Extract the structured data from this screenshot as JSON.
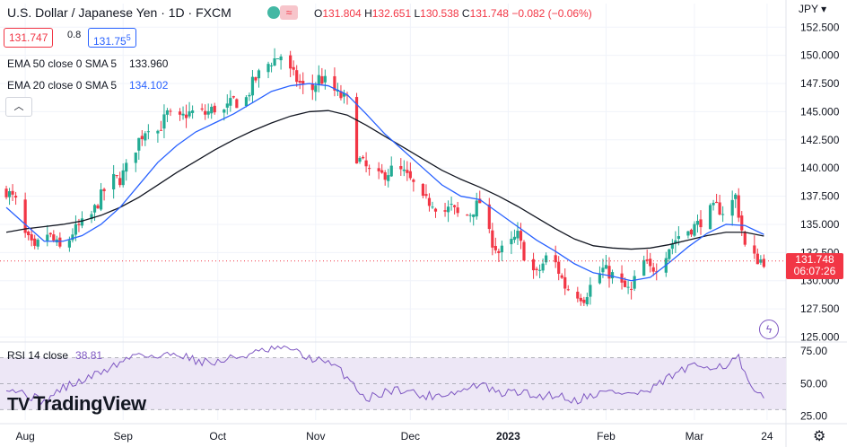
{
  "header": {
    "title": "U.S. Dollar / Japanese Yen · 1D · FXCM",
    "ohlc": {
      "o_label": "O",
      "o": "131.804",
      "h_label": "H",
      "h": "132.651",
      "l_label": "L",
      "l": "130.538",
      "c_label": "C",
      "c": "131.748",
      "change": "−0.082 (−0.06%)"
    },
    "bid": "131.747",
    "spread": "0.8",
    "ask": "131.75",
    "ask_sup": "5",
    "market_status_icon": "market-open-dot-icon",
    "pill_icon": "wave-icon"
  },
  "indicators": [
    {
      "label": "EMA 50 close 0 SMA 5",
      "value": "133.960",
      "color": "#131722"
    },
    {
      "label": "EMA 20 close 0 SMA 5",
      "value": "134.102",
      "color": "#2962ff"
    }
  ],
  "rsi": {
    "label": "RSI 14 close",
    "value": "38.81",
    "color": "#7e57c2"
  },
  "branding": {
    "logo_text": "TradingView",
    "logo_mark": "TV"
  },
  "price_axis": {
    "unit": "JPY"
  },
  "last_price": {
    "value": "131.748",
    "countdown": "06:07:26"
  },
  "colors": {
    "up": "#22ab94",
    "down": "#f23645",
    "ema20": "#2962ff",
    "ema50": "#131722",
    "rsi": "#7e57c2",
    "rsi_band": "#ede7f6"
  },
  "chart_data": {
    "type": "candlestick",
    "y_ticks": [
      125.0,
      127.5,
      130.0,
      132.5,
      135.0,
      137.5,
      140.0,
      142.5,
      145.0,
      147.5,
      150.0,
      152.5
    ],
    "y_tick_labels": [
      "125.000",
      "127.500",
      "130.000",
      "132.500",
      "135.000",
      "137.500",
      "140.000",
      "142.500",
      "145.000",
      "147.500",
      "150.000",
      "152.500"
    ],
    "ylim": [
      124.8,
      153.0
    ],
    "x_tick_labels": [
      "Aug",
      "Sep",
      "Oct",
      "Nov",
      "Dec",
      "2023",
      "Feb",
      "Mar",
      "24"
    ],
    "x_tick_days": [
      0,
      31,
      61,
      92,
      122,
      153,
      184,
      212,
      235
    ],
    "xlim": [
      -8,
      241
    ],
    "series": [
      {
        "name": "USD/JPY close",
        "close_points": [
          [
            -6,
            138.0
          ],
          [
            -3,
            137.0
          ],
          [
            0,
            134.0
          ],
          [
            3,
            132.6
          ],
          [
            6,
            134.5
          ],
          [
            9,
            133.5
          ],
          [
            12,
            132.5
          ],
          [
            15,
            134.3
          ],
          [
            18,
            135.0
          ],
          [
            21,
            135.8
          ],
          [
            24,
            137.5
          ],
          [
            27,
            139.0
          ],
          [
            30,
            139.0
          ],
          [
            33,
            140.5
          ],
          [
            36,
            142.5
          ],
          [
            39,
            143.8
          ],
          [
            42,
            143.3
          ],
          [
            45,
            144.8
          ],
          [
            48,
            144.0
          ],
          [
            51,
            144.8
          ],
          [
            54,
            145.0
          ],
          [
            57,
            144.8
          ],
          [
            60,
            145.3
          ],
          [
            63,
            145.0
          ],
          [
            66,
            146.0
          ],
          [
            69,
            145.5
          ],
          [
            72,
            147.5
          ],
          [
            75,
            148.7
          ],
          [
            78,
            149.5
          ],
          [
            81,
            150.0
          ],
          [
            84,
            148.5
          ],
          [
            87,
            147.5
          ],
          [
            90,
            146.5
          ],
          [
            93,
            148.0
          ],
          [
            96,
            147.5
          ],
          [
            99,
            146.5
          ],
          [
            102,
            146.0
          ],
          [
            105,
            141.0
          ],
          [
            108,
            140.0
          ],
          [
            111,
            139.0
          ],
          [
            114,
            139.5
          ],
          [
            117,
            140.0
          ],
          [
            120,
            139.5
          ],
          [
            123,
            138.5
          ],
          [
            126,
            137.0
          ],
          [
            129,
            137.0
          ],
          [
            132,
            136.0
          ],
          [
            135,
            136.5
          ],
          [
            138,
            135.5
          ],
          [
            141,
            136.0
          ],
          [
            144,
            137.0
          ],
          [
            147,
            134.0
          ],
          [
            150,
            132.5
          ],
          [
            153,
            133.0
          ],
          [
            156,
            134.0
          ],
          [
            159,
            131.5
          ],
          [
            162,
            130.5
          ],
          [
            165,
            132.0
          ],
          [
            168,
            131.5
          ],
          [
            171,
            129.5
          ],
          [
            174,
            129.0
          ],
          [
            177,
            128.5
          ],
          [
            180,
            130.0
          ],
          [
            183,
            131.0
          ],
          [
            186,
            130.5
          ],
          [
            189,
            129.5
          ],
          [
            192,
            129.0
          ],
          [
            195,
            132.0
          ],
          [
            198,
            131.0
          ],
          [
            201,
            131.5
          ],
          [
            204,
            133.0
          ],
          [
            207,
            134.0
          ],
          [
            210,
            134.5
          ],
          [
            213,
            135.0
          ],
          [
            216,
            136.0
          ],
          [
            219,
            136.5
          ],
          [
            222,
            136.0
          ],
          [
            225,
            137.5
          ],
          [
            228,
            133.0
          ],
          [
            231,
            132.0
          ],
          [
            234,
            131.748
          ]
        ]
      },
      {
        "name": "EMA 20",
        "points": [
          [
            -6,
            136.5
          ],
          [
            0,
            135.0
          ],
          [
            6,
            133.5
          ],
          [
            12,
            133.5
          ],
          [
            18,
            134.0
          ],
          [
            24,
            135.0
          ],
          [
            30,
            136.5
          ],
          [
            36,
            138.5
          ],
          [
            42,
            140.5
          ],
          [
            48,
            142.0
          ],
          [
            54,
            143.2
          ],
          [
            60,
            144.0
          ],
          [
            66,
            144.8
          ],
          [
            72,
            145.8
          ],
          [
            78,
            146.8
          ],
          [
            84,
            147.3
          ],
          [
            90,
            147.5
          ],
          [
            96,
            147.3
          ],
          [
            102,
            146.5
          ],
          [
            108,
            144.8
          ],
          [
            114,
            143.0
          ],
          [
            120,
            141.5
          ],
          [
            126,
            140.0
          ],
          [
            132,
            138.5
          ],
          [
            138,
            137.5
          ],
          [
            144,
            137.2
          ],
          [
            150,
            136.0
          ],
          [
            156,
            134.8
          ],
          [
            162,
            133.6
          ],
          [
            168,
            132.6
          ],
          [
            174,
            131.5
          ],
          [
            180,
            130.7
          ],
          [
            186,
            130.4
          ],
          [
            192,
            130.0
          ],
          [
            198,
            130.3
          ],
          [
            204,
            131.6
          ],
          [
            210,
            133.0
          ],
          [
            216,
            134.2
          ],
          [
            222,
            135.0
          ],
          [
            228,
            134.9
          ],
          [
            234,
            134.1
          ]
        ]
      },
      {
        "name": "EMA 50",
        "points": [
          [
            -6,
            134.3
          ],
          [
            0,
            134.6
          ],
          [
            6,
            134.8
          ],
          [
            12,
            135.0
          ],
          [
            18,
            135.3
          ],
          [
            24,
            135.8
          ],
          [
            30,
            136.5
          ],
          [
            36,
            137.4
          ],
          [
            42,
            138.5
          ],
          [
            48,
            139.6
          ],
          [
            54,
            140.6
          ],
          [
            60,
            141.6
          ],
          [
            66,
            142.5
          ],
          [
            72,
            143.3
          ],
          [
            78,
            144.0
          ],
          [
            84,
            144.6
          ],
          [
            90,
            145.0
          ],
          [
            96,
            145.1
          ],
          [
            102,
            144.7
          ],
          [
            108,
            143.8
          ],
          [
            114,
            142.8
          ],
          [
            120,
            141.8
          ],
          [
            126,
            140.8
          ],
          [
            132,
            139.8
          ],
          [
            138,
            139.0
          ],
          [
            144,
            138.3
          ],
          [
            150,
            137.5
          ],
          [
            156,
            136.6
          ],
          [
            162,
            135.6
          ],
          [
            168,
            134.6
          ],
          [
            174,
            133.7
          ],
          [
            180,
            133.1
          ],
          [
            186,
            132.9
          ],
          [
            192,
            132.8
          ],
          [
            198,
            132.9
          ],
          [
            204,
            133.2
          ],
          [
            210,
            133.6
          ],
          [
            216,
            134.0
          ],
          [
            222,
            134.3
          ],
          [
            228,
            134.3
          ],
          [
            234,
            133.96
          ]
        ]
      },
      {
        "name": "RSI 14",
        "points": [
          [
            -6,
            48
          ],
          [
            0,
            42
          ],
          [
            6,
            36
          ],
          [
            12,
            47
          ],
          [
            18,
            52
          ],
          [
            24,
            59
          ],
          [
            30,
            66
          ],
          [
            36,
            74
          ],
          [
            42,
            70
          ],
          [
            48,
            74
          ],
          [
            54,
            68
          ],
          [
            60,
            66
          ],
          [
            66,
            70
          ],
          [
            72,
            73
          ],
          [
            78,
            76
          ],
          [
            84,
            78
          ],
          [
            87,
            72
          ],
          [
            93,
            68
          ],
          [
            99,
            62
          ],
          [
            104,
            50
          ],
          [
            108,
            38
          ],
          [
            114,
            44
          ],
          [
            120,
            46
          ],
          [
            126,
            40
          ],
          [
            132,
            42
          ],
          [
            138,
            44
          ],
          [
            144,
            50
          ],
          [
            150,
            42
          ],
          [
            156,
            44
          ],
          [
            162,
            40
          ],
          [
            168,
            42
          ],
          [
            174,
            37
          ],
          [
            180,
            42
          ],
          [
            186,
            44
          ],
          [
            192,
            42
          ],
          [
            198,
            44
          ],
          [
            204,
            55
          ],
          [
            210,
            62
          ],
          [
            216,
            64
          ],
          [
            222,
            64
          ],
          [
            226,
            70
          ],
          [
            228,
            56
          ],
          [
            231,
            42
          ],
          [
            234,
            38.81
          ]
        ]
      }
    ],
    "rsi_levels": [
      70,
      50,
      30
    ],
    "rsi_tick_labels": [
      "75.00",
      "50.00",
      "25.00"
    ],
    "rsi_ticks": [
      75,
      50,
      25
    ],
    "rsi_ylim": [
      22,
      80
    ]
  }
}
